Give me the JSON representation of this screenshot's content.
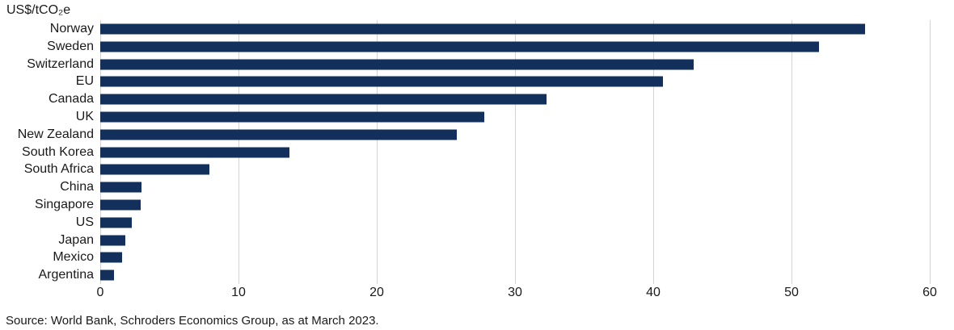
{
  "unit_label": "US$/tCO₂e",
  "source_note": "Source: World Bank, Schroders Economics Group, as at March 2023.",
  "colors": {
    "bar": "#12305b",
    "gridline": "#d3d3d3",
    "text": "#1a1a1a"
  },
  "chart_data": {
    "type": "bar",
    "orientation": "horizontal",
    "title": "",
    "xlabel": "",
    "ylabel": "US$/tCO₂e",
    "xlim": [
      0,
      60
    ],
    "xticks": [
      0,
      10,
      20,
      30,
      40,
      50,
      60
    ],
    "grid": "vertical",
    "legend": "none",
    "categories": [
      "Norway",
      "Sweden",
      "Switzerland",
      "EU",
      "Canada",
      "UK",
      "New Zealand",
      "South Korea",
      "South Africa",
      "China",
      "Singapore",
      "US",
      "Japan",
      "Mexico",
      "Argentina"
    ],
    "values": [
      55.3,
      52.0,
      42.9,
      40.7,
      32.3,
      27.8,
      25.8,
      13.7,
      7.9,
      3.0,
      2.9,
      2.3,
      1.8,
      1.6,
      1.0
    ]
  }
}
